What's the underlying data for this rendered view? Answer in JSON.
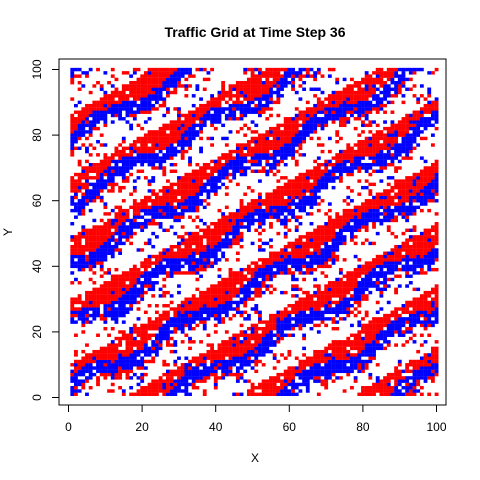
{
  "chart_data": {
    "type": "heatmap",
    "title": "Traffic Grid at Time Step 36",
    "xlabel": "X",
    "ylabel": "Y",
    "xlim": [
      1,
      100
    ],
    "ylim": [
      1,
      100
    ],
    "x_ticks": [
      0,
      20,
      40,
      60,
      80,
      100
    ],
    "y_ticks": [
      0,
      20,
      40,
      60,
      80,
      100
    ],
    "grid_size": 100,
    "cell_states": [
      "empty",
      "red",
      "blue"
    ],
    "colors": {
      "empty": "#ffffff",
      "red": "#ff0000",
      "blue": "#0000ff"
    },
    "density": {
      "red": 0.34,
      "blue": 0.3
    },
    "grid": false,
    "legend": "none"
  }
}
